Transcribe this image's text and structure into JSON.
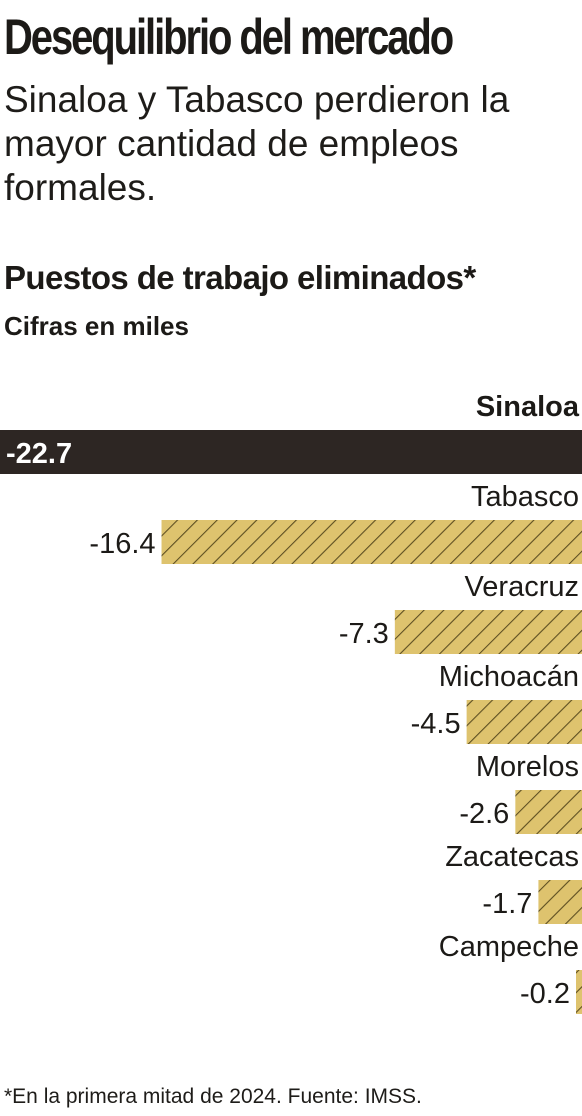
{
  "header": {
    "title": "Desequilibrio del mercado",
    "dek": "Sinaloa y Tabasco perdieron la mayor cantidad de empleos formales."
  },
  "chart": {
    "title": "Puestos de trabajo eliminados*",
    "subtitle": "Cifras en miles"
  },
  "colors": {
    "highlight_bar": "#2d2623",
    "bar_fill": "#dec36e",
    "bar_hatch": "#5e4f22",
    "text": "#1c1a17"
  },
  "chart_data": {
    "type": "bar",
    "orientation": "horizontal",
    "categories": [
      "Sinaloa",
      "Tabasco",
      "Veracruz",
      "Michoacán",
      "Morelos",
      "Zacatecas",
      "Campeche"
    ],
    "values": [
      -22.7,
      -16.4,
      -7.3,
      -4.5,
      -2.6,
      -1.7,
      -0.2
    ],
    "labels": [
      "-22.7",
      "-16.4",
      "-7.3",
      "-4.5",
      "-2.6",
      "-1.7",
      "-0.2"
    ],
    "highlighted": [
      "Sinaloa"
    ],
    "unit": "miles",
    "xlim": [
      -22.7,
      0
    ],
    "grid": false,
    "legend": "none"
  },
  "footer": {
    "note": "*En la primera mitad de 2024. Fuente: IMSS."
  }
}
